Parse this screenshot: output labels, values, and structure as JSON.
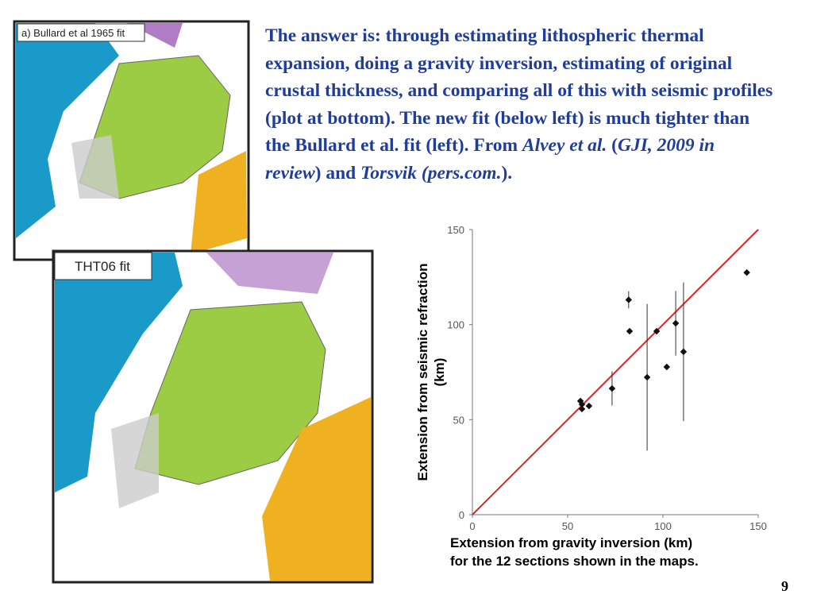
{
  "slide": {
    "paragraph": [
      "The answer is: through estimating lithospheric thermal expansion, doing a gravity inversion, estimating of original crustal thickness, and comparing all of this with seismic profiles (plot at bottom). The new fit (below left) is much tighter than the Bullard et al. fit (left). From ",
      "Alvey et al.",
      " (",
      "GJI, 2009  in review",
      ") and ",
      "Torsvik (pers.com.",
      ")."
    ],
    "maps": [
      {
        "label": "a) Bullard et al 1965 fit"
      },
      {
        "label": "THT06 fit"
      }
    ],
    "page_number": "9"
  },
  "chart_data": {
    "type": "scatter",
    "xlabel": "Extension from gravity inversion (km)",
    "caption": "for the 12 sections shown in the maps.",
    "ylabel": [
      "Extension from seismic refraction",
      "(km)"
    ],
    "x": [
      56.7,
      57.5,
      57.5,
      61.2,
      73.3,
      82,
      82.5,
      91.7,
      96.7,
      102,
      106.7,
      110.8,
      144
    ],
    "series": [
      {
        "color": "#111111",
        "values": [
          59.8,
          58,
          55.6,
          57.2,
          66.4,
          113,
          96.5,
          72.3,
          96.5,
          77.7,
          100.7,
          85.7,
          127.4
        ],
        "errors": [
          null,
          null,
          null,
          null,
          9,
          4.5,
          null,
          38.6,
          null,
          null,
          17,
          36.5,
          null
        ]
      }
    ],
    "reference_line": {
      "x": [
        0,
        150
      ],
      "y": [
        0,
        150
      ],
      "color": "#d62728"
    },
    "xlim": [
      0,
      150
    ],
    "ylim": [
      0,
      150
    ],
    "xticks": [
      0,
      50,
      100,
      150
    ],
    "yticks": [
      0,
      50,
      100,
      150
    ]
  }
}
